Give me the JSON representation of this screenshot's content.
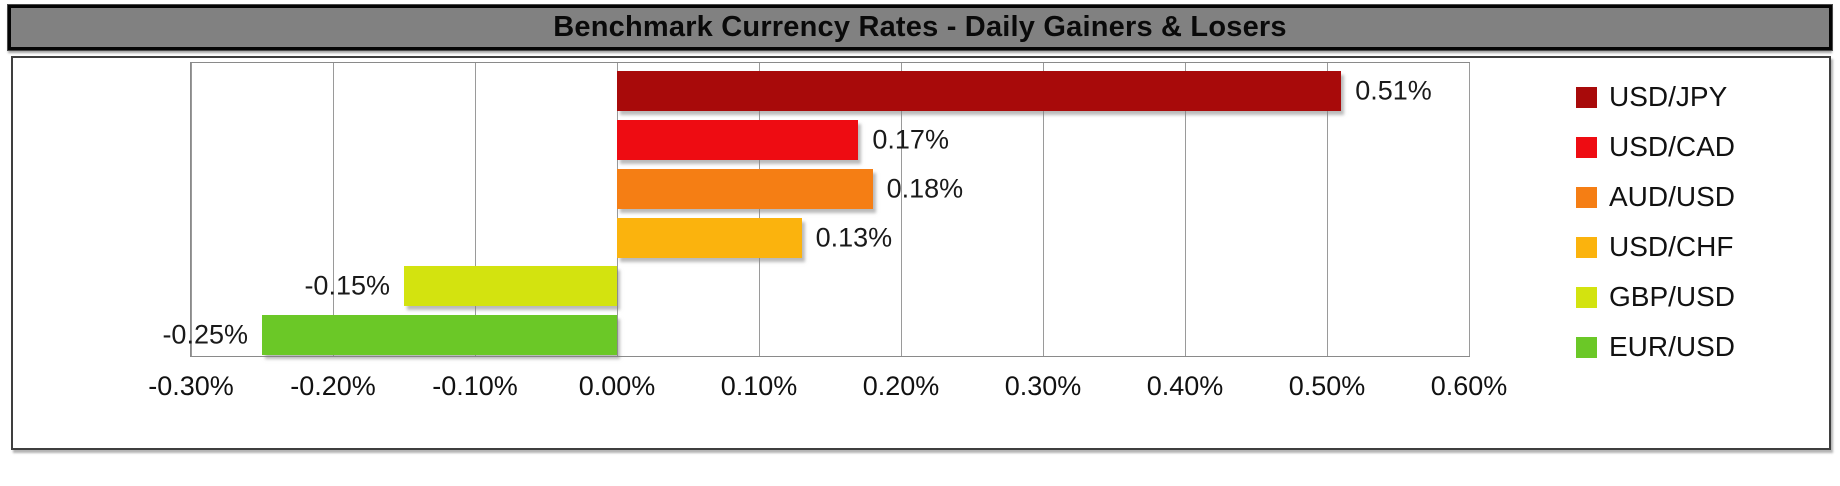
{
  "title": "Benchmark Currency Rates - Daily Gainers & Losers",
  "colors": {
    "title_bar_bg": "#818181",
    "title_text": "#0a0a0a",
    "frame_border": "#3f3f3f",
    "plot_border": "#8a8a8a",
    "gridline": "#9a9a9a",
    "label_text": "#1a1a1a"
  },
  "chart_data": {
    "type": "bar",
    "orientation": "horizontal",
    "title": "Benchmark Currency Rates - Daily Gainers & Losers",
    "xlabel": "",
    "ylabel": "",
    "xlim": [
      -0.3,
      0.6
    ],
    "grid": true,
    "legend_position": "right",
    "x_ticks": [
      {
        "value": -0.3,
        "label": "-0.30%"
      },
      {
        "value": -0.2,
        "label": "-0.20%"
      },
      {
        "value": -0.1,
        "label": "-0.10%"
      },
      {
        "value": 0.0,
        "label": "0.00%"
      },
      {
        "value": 0.1,
        "label": "0.10%"
      },
      {
        "value": 0.2,
        "label": "0.20%"
      },
      {
        "value": 0.3,
        "label": "0.30%"
      },
      {
        "value": 0.4,
        "label": "0.40%"
      },
      {
        "value": 0.5,
        "label": "0.50%"
      },
      {
        "value": 0.6,
        "label": "0.60%"
      }
    ],
    "series": [
      {
        "name": "USD/JPY",
        "value": 0.51,
        "label": "0.51%",
        "color": "#A80A0A"
      },
      {
        "name": "USD/CAD",
        "value": 0.17,
        "label": "0.17%",
        "color": "#EE0C12"
      },
      {
        "name": "AUD/USD",
        "value": 0.18,
        "label": "0.18%",
        "color": "#F57E14"
      },
      {
        "name": "USD/CHF",
        "value": 0.13,
        "label": "0.13%",
        "color": "#FBB30D"
      },
      {
        "name": "GBP/USD",
        "value": -0.15,
        "label": "-0.15%",
        "color": "#D3E30F"
      },
      {
        "name": "EUR/USD",
        "value": -0.25,
        "label": "-0.25%",
        "color": "#6BC827"
      }
    ]
  }
}
